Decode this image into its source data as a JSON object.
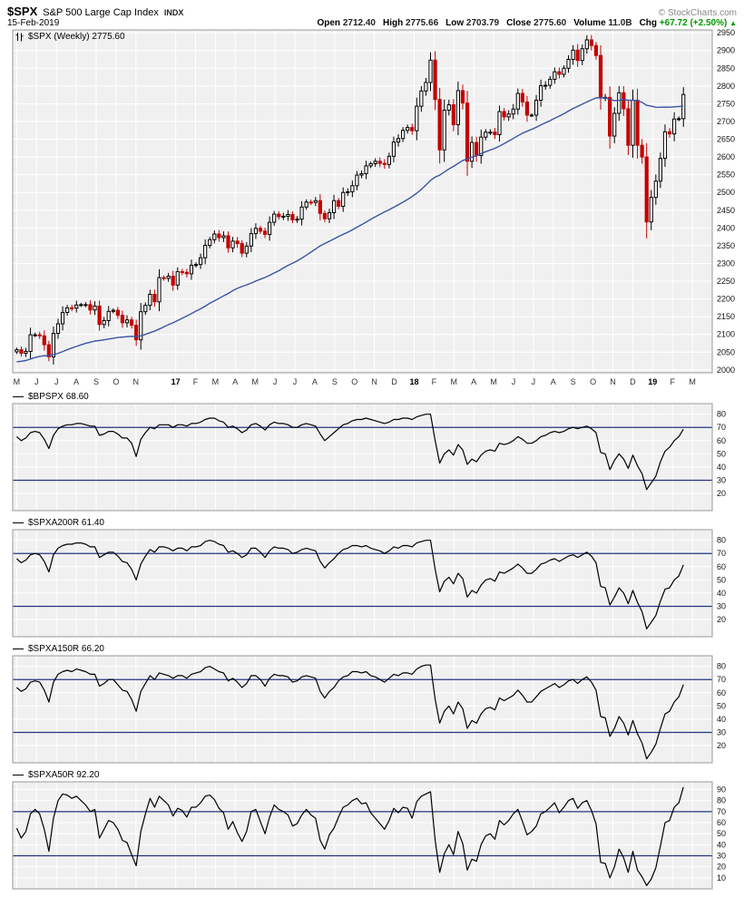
{
  "header": {
    "symbol": "$SPX",
    "name": "S&P 500 Large Cap Index",
    "exchange": "INDX",
    "credit": "© StockCharts.com",
    "date": "15-Feb-2019",
    "quote_items": [
      {
        "label": "Open",
        "value": "2712.40"
      },
      {
        "label": "High",
        "value": "2775.66"
      },
      {
        "label": "Low",
        "value": "2703.79"
      },
      {
        "label": "Close",
        "value": "2775.60"
      },
      {
        "label": "Volume",
        "value": "11.0B"
      },
      {
        "label": "Chg",
        "value": "+67.72 (+2.50%)"
      }
    ],
    "chg_arrow": "▲"
  },
  "colors": {
    "up": "#000000",
    "down": "#c40000",
    "ma": "#3b54a3",
    "hline": "#24357f",
    "plot_bg": "#f0f0f0",
    "grid": "#ffffff",
    "chg_green": "#009900"
  },
  "chart_data": [
    {
      "type": "candlestick",
      "title": "$SPX (Weekly) 2775.60",
      "ylabel": "",
      "ylim": [
        1992,
        2958
      ],
      "yticks": [
        2000,
        2050,
        2100,
        2150,
        2200,
        2250,
        2300,
        2350,
        2400,
        2450,
        2500,
        2550,
        2600,
        2650,
        2700,
        2750,
        2800,
        2850,
        2900,
        2950
      ],
      "x_axis_labels": [
        {
          "label": "M",
          "m": 0
        },
        {
          "label": "J",
          "m": 1
        },
        {
          "label": "J",
          "m": 2
        },
        {
          "label": "A",
          "m": 3
        },
        {
          "label": "S",
          "m": 4
        },
        {
          "label": "O",
          "m": 5
        },
        {
          "label": "N",
          "m": 6
        },
        {
          "label": "17",
          "m": 8
        },
        {
          "label": "F",
          "m": 9
        },
        {
          "label": "M",
          "m": 10
        },
        {
          "label": "A",
          "m": 11
        },
        {
          "label": "M",
          "m": 12
        },
        {
          "label": "J",
          "m": 13
        },
        {
          "label": "J",
          "m": 14
        },
        {
          "label": "A",
          "m": 15
        },
        {
          "label": "S",
          "m": 16
        },
        {
          "label": "O",
          "m": 17
        },
        {
          "label": "N",
          "m": 18
        },
        {
          "label": "D",
          "m": 19
        },
        {
          "label": "18",
          "m": 20
        },
        {
          "label": "F",
          "m": 21
        },
        {
          "label": "M",
          "m": 22
        },
        {
          "label": "A",
          "m": 23
        },
        {
          "label": "M",
          "m": 24
        },
        {
          "label": "J",
          "m": 25
        },
        {
          "label": "J",
          "m": 26
        },
        {
          "label": "A",
          "m": 27
        },
        {
          "label": "S",
          "m": 28
        },
        {
          "label": "O",
          "m": 29
        },
        {
          "label": "N",
          "m": 30
        },
        {
          "label": "D",
          "m": 31
        },
        {
          "label": "19",
          "m": 32
        },
        {
          "label": "F",
          "m": 33
        },
        {
          "label": "M",
          "m": 34
        }
      ],
      "ma_note": "40-week moving average (blue line)",
      "closes": [
        2057,
        2047,
        2052,
        2099,
        2099,
        2096,
        2071,
        2037,
        2103,
        2130,
        2162,
        2175,
        2174,
        2183,
        2184,
        2184,
        2169,
        2180,
        2128,
        2139,
        2165,
        2168,
        2154,
        2133,
        2141,
        2126,
        2085,
        2164,
        2182,
        2213,
        2192,
        2260,
        2258,
        2264,
        2239,
        2277,
        2275,
        2271,
        2295,
        2297,
        2316,
        2351,
        2367,
        2383,
        2373,
        2378,
        2344,
        2363,
        2356,
        2329,
        2349,
        2384,
        2399,
        2391,
        2382,
        2416,
        2439,
        2432,
        2433,
        2438,
        2423,
        2425,
        2459,
        2473,
        2472,
        2477,
        2441,
        2426,
        2443,
        2477,
        2461,
        2500,
        2502,
        2519,
        2549,
        2553,
        2575,
        2581,
        2588,
        2582,
        2579,
        2602,
        2642,
        2652,
        2675,
        2683,
        2674,
        2743,
        2786,
        2810,
        2873,
        2762,
        2620,
        2732,
        2747,
        2691,
        2787,
        2752,
        2588,
        2641,
        2604,
        2656,
        2670,
        2670,
        2663,
        2728,
        2713,
        2721,
        2735,
        2779,
        2755,
        2718,
        2718,
        2760,
        2801,
        2802,
        2819,
        2840,
        2833,
        2850,
        2875,
        2901,
        2872,
        2905,
        2930,
        2914,
        2886,
        2767,
        2768,
        2659,
        2723,
        2781,
        2736,
        2633,
        2760,
        2633,
        2600,
        2417,
        2486,
        2532,
        2596,
        2671,
        2665,
        2707,
        2708,
        2776
      ]
    },
    {
      "type": "line",
      "title": "$BPSPX 68.60",
      "ylim": [
        7,
        88
      ],
      "yticks": [
        20,
        30,
        40,
        50,
        60,
        70,
        80
      ],
      "hlines": [
        70,
        30
      ],
      "values": [
        63,
        60,
        62,
        66,
        67,
        66,
        61,
        54,
        64,
        69,
        71,
        72,
        72,
        73,
        73,
        72,
        71,
        71,
        64,
        65,
        67,
        67,
        65,
        62,
        62,
        58,
        48,
        61,
        66,
        70,
        69,
        72,
        72,
        72,
        70,
        72,
        72,
        71,
        73,
        73,
        74,
        76,
        77,
        77,
        75,
        74,
        70,
        71,
        69,
        66,
        68,
        72,
        73,
        71,
        68,
        72,
        74,
        73,
        73,
        72,
        70,
        70,
        72,
        73,
        72,
        71,
        65,
        60,
        63,
        66,
        69,
        72,
        73,
        75,
        76,
        76,
        77,
        76,
        75,
        74,
        73,
        74,
        76,
        76,
        77,
        77,
        76,
        78,
        79,
        80,
        80,
        60,
        43,
        50,
        53,
        49,
        57,
        53,
        42,
        46,
        44,
        49,
        52,
        53,
        52,
        58,
        57,
        58,
        60,
        63,
        61,
        58,
        58,
        60,
        63,
        64,
        66,
        67,
        66,
        67,
        69,
        70,
        69,
        70,
        71,
        69,
        66,
        51,
        50,
        38,
        45,
        50,
        46,
        39,
        49,
        41,
        35,
        23,
        28,
        33,
        44,
        52,
        55,
        60,
        63,
        68.6
      ]
    },
    {
      "type": "line",
      "title": "$SPXA200R 61.40",
      "ylim": [
        7,
        88
      ],
      "yticks": [
        20,
        30,
        40,
        50,
        60,
        70,
        80
      ],
      "hlines": [
        70,
        30
      ],
      "values": [
        66,
        63,
        65,
        69,
        70,
        69,
        64,
        56,
        69,
        74,
        76,
        77,
        77,
        78,
        78,
        77,
        75,
        75,
        67,
        69,
        71,
        71,
        68,
        64,
        63,
        58,
        50,
        62,
        68,
        73,
        71,
        75,
        75,
        74,
        72,
        74,
        74,
        72,
        75,
        75,
        76,
        79,
        80,
        79,
        77,
        76,
        71,
        72,
        70,
        67,
        69,
        74,
        74,
        71,
        67,
        72,
        75,
        74,
        74,
        73,
        70,
        71,
        73,
        74,
        73,
        72,
        64,
        59,
        63,
        66,
        70,
        73,
        74,
        76,
        76,
        75,
        76,
        74,
        73,
        72,
        70,
        72,
        75,
        74,
        76,
        76,
        75,
        78,
        79,
        80,
        80,
        58,
        41,
        49,
        52,
        47,
        55,
        51,
        37,
        42,
        40,
        46,
        50,
        51,
        49,
        56,
        55,
        57,
        59,
        62,
        59,
        55,
        55,
        58,
        62,
        63,
        65,
        66,
        64,
        66,
        68,
        69,
        67,
        69,
        71,
        68,
        63,
        45,
        44,
        31,
        37,
        44,
        40,
        32,
        42,
        33,
        26,
        13,
        18,
        23,
        34,
        43,
        44,
        50,
        53,
        61.4
      ]
    },
    {
      "type": "line",
      "title": "$SPXA150R 66.20",
      "ylim": [
        7,
        88
      ],
      "yticks": [
        20,
        30,
        40,
        50,
        60,
        70,
        80
      ],
      "hlines": [
        70,
        30
      ],
      "values": [
        64,
        61,
        63,
        68,
        69,
        68,
        62,
        53,
        68,
        74,
        76,
        77,
        76,
        78,
        77,
        76,
        74,
        74,
        65,
        67,
        70,
        70,
        66,
        62,
        61,
        55,
        46,
        61,
        67,
        73,
        70,
        75,
        74,
        73,
        71,
        73,
        73,
        71,
        74,
        75,
        76,
        79,
        80,
        78,
        76,
        75,
        69,
        71,
        68,
        64,
        67,
        73,
        73,
        70,
        65,
        71,
        74,
        73,
        73,
        72,
        68,
        69,
        72,
        73,
        72,
        71,
        61,
        56,
        61,
        64,
        69,
        72,
        73,
        76,
        76,
        75,
        76,
        73,
        72,
        70,
        68,
        71,
        74,
        73,
        75,
        75,
        74,
        78,
        80,
        81,
        81,
        55,
        37,
        46,
        50,
        44,
        53,
        48,
        33,
        39,
        37,
        44,
        48,
        49,
        47,
        56,
        54,
        56,
        58,
        62,
        58,
        53,
        53,
        57,
        61,
        63,
        65,
        67,
        64,
        66,
        69,
        70,
        67,
        70,
        72,
        68,
        62,
        42,
        41,
        27,
        33,
        42,
        37,
        28,
        39,
        29,
        22,
        10,
        15,
        21,
        33,
        44,
        46,
        53,
        57,
        66.2
      ]
    },
    {
      "type": "line",
      "title": "$SPXA50R 92.20",
      "ylim": [
        0,
        97
      ],
      "yticks": [
        10,
        20,
        30,
        40,
        50,
        60,
        70,
        80,
        90
      ],
      "hlines": [
        70,
        30
      ],
      "values": [
        55,
        46,
        52,
        68,
        72,
        68,
        54,
        34,
        64,
        80,
        86,
        85,
        82,
        84,
        80,
        76,
        70,
        72,
        46,
        54,
        62,
        60,
        54,
        44,
        42,
        31,
        21,
        52,
        68,
        82,
        74,
        84,
        80,
        76,
        66,
        73,
        71,
        65,
        74,
        74,
        78,
        84,
        85,
        81,
        73,
        69,
        54,
        61,
        51,
        43,
        52,
        70,
        72,
        61,
        50,
        65,
        76,
        72,
        70,
        67,
        57,
        59,
        67,
        72,
        67,
        64,
        44,
        36,
        49,
        55,
        65,
        74,
        76,
        80,
        82,
        77,
        78,
        69,
        64,
        59,
        54,
        62,
        73,
        69,
        74,
        73,
        64,
        79,
        84,
        86,
        88,
        44,
        15,
        32,
        40,
        31,
        52,
        41,
        17,
        27,
        25,
        40,
        48,
        50,
        45,
        62,
        58,
        62,
        68,
        72,
        61,
        49,
        52,
        57,
        68,
        70,
        74,
        78,
        69,
        74,
        80,
        82,
        73,
        78,
        80,
        71,
        59,
        24,
        23,
        10,
        20,
        36,
        28,
        15,
        34,
        17,
        11,
        3,
        9,
        19,
        39,
        60,
        62,
        74,
        78,
        92.2
      ]
    }
  ]
}
